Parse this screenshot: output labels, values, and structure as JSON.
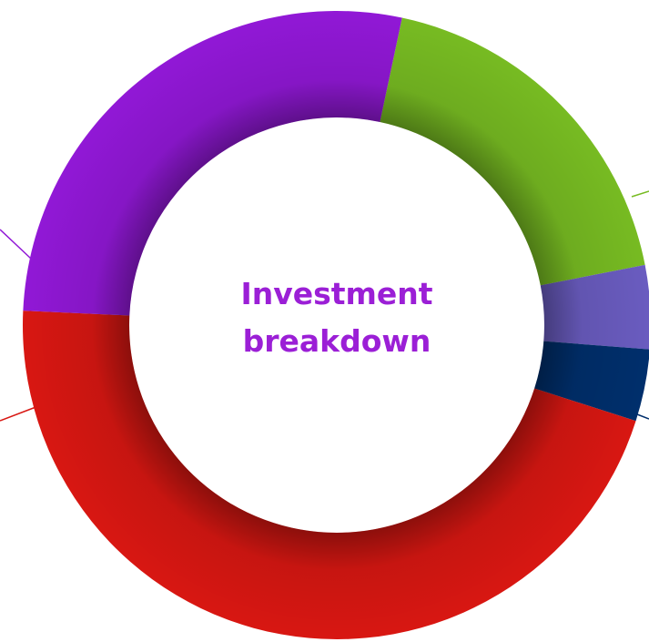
{
  "chart_data": {
    "type": "donut",
    "title": "Investment breakdown",
    "categories": [
      null,
      null,
      null,
      null,
      null
    ],
    "values": [
      18.6,
      4.3,
      3.7,
      45.8,
      27.6
    ],
    "colors": [
      "#77bb22",
      "#6a5cc0",
      "#002f6c",
      "#d81712",
      "#9118d6"
    ]
  }
}
